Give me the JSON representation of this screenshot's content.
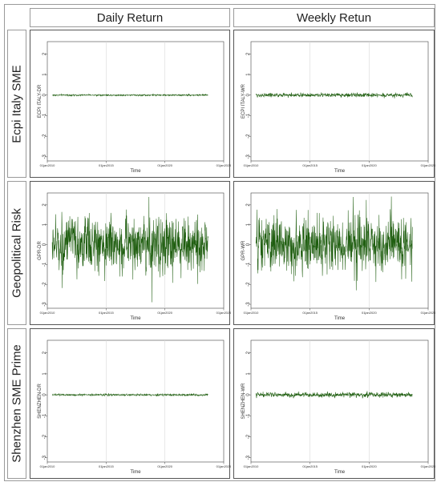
{
  "columns": [
    "Daily Return",
    "Weekly Retun"
  ],
  "rows": [
    "Ecpi Italy SME",
    "Geopolitical Risk",
    "Shenzhen  SME Prime"
  ],
  "line_color": "#1f5e10",
  "chart_data": [
    {
      "type": "line",
      "row": "Ecpi Italy SME",
      "column": "Daily Return",
      "ylabel": "ECPI ITALY-DR",
      "xlabel": "Time",
      "x_ticks": [
        "01jan2010",
        "01jan2015",
        "01jan2020",
        "01jan2025"
      ],
      "y_ticks": [
        -3,
        -2,
        -1,
        0,
        1,
        2
      ],
      "ylim": [
        -3.2,
        2.6
      ],
      "series": [
        {
          "x_start": "2010-06",
          "x_end": "2023-09",
          "mean": 0.0,
          "amplitude": 0.04
        }
      ]
    },
    {
      "type": "line",
      "row": "Ecpi Italy SME",
      "column": "Weekly Retun",
      "ylabel": "ECPI ITALY-WR",
      "xlabel": "Time",
      "x_ticks": [
        "01jan2010",
        "01jan2015",
        "01jan2020",
        "01jan2025"
      ],
      "y_ticks": [
        -3,
        -2,
        -1,
        0,
        1,
        2
      ],
      "ylim": [
        -3.2,
        2.6
      ],
      "series": [
        {
          "x_start": "2010-06",
          "x_end": "2023-09",
          "mean": 0.0,
          "amplitude": 0.1
        }
      ]
    },
    {
      "type": "line",
      "row": "Geopolitical Risk",
      "column": "Daily Return",
      "ylabel": "GPR-DR",
      "xlabel": "Time",
      "x_ticks": [
        "01jan2010",
        "01jan2015",
        "01jan2020",
        "01jan2025"
      ],
      "y_ticks": [
        -3,
        -2,
        -1,
        0,
        1,
        2
      ],
      "ylim": [
        -3.2,
        2.6
      ],
      "series": [
        {
          "x_start": "2010-06",
          "x_end": "2023-09",
          "mean": 0.0,
          "amplitude": 1.4,
          "max": 2.4,
          "min": -2.9
        }
      ]
    },
    {
      "type": "line",
      "row": "Geopolitical Risk",
      "column": "Weekly Retun",
      "ylabel": "GPR-WR",
      "xlabel": "Time",
      "x_ticks": [
        "01jan2010",
        "01jan2015",
        "01jan2020",
        "01jan2025"
      ],
      "y_ticks": [
        -3,
        -2,
        -1,
        0,
        1,
        2
      ],
      "ylim": [
        -3.2,
        2.6
      ],
      "series": [
        {
          "x_start": "2010-06",
          "x_end": "2023-09",
          "mean": 0.0,
          "amplitude": 1.4,
          "max": 2.4,
          "min": -2.3
        }
      ]
    },
    {
      "type": "line",
      "row": "Shenzhen  SME Prime",
      "column": "Daily Return",
      "ylabel": "SHENZHEN-DR",
      "xlabel": "Time",
      "x_ticks": [
        "01jan2010",
        "01jan2015",
        "01jan2020",
        "01jan2025"
      ],
      "y_ticks": [
        -3,
        -2,
        -1,
        0,
        1,
        2
      ],
      "ylim": [
        -3.2,
        2.6
      ],
      "series": [
        {
          "x_start": "2010-06",
          "x_end": "2023-09",
          "mean": 0.0,
          "amplitude": 0.05
        }
      ]
    },
    {
      "type": "line",
      "row": "Shenzhen  SME Prime",
      "column": "Weekly Retun",
      "ylabel": "SHENZHEN-WR",
      "xlabel": "Time",
      "x_ticks": [
        "01jan2010",
        "01jan2015",
        "01jan2020",
        "01jan2025"
      ],
      "y_ticks": [
        -3,
        -2,
        -1,
        0,
        1,
        2
      ],
      "ylim": [
        -3.2,
        2.6
      ],
      "series": [
        {
          "x_start": "2010-06",
          "x_end": "2023-09",
          "mean": 0.0,
          "amplitude": 0.12
        }
      ]
    }
  ]
}
